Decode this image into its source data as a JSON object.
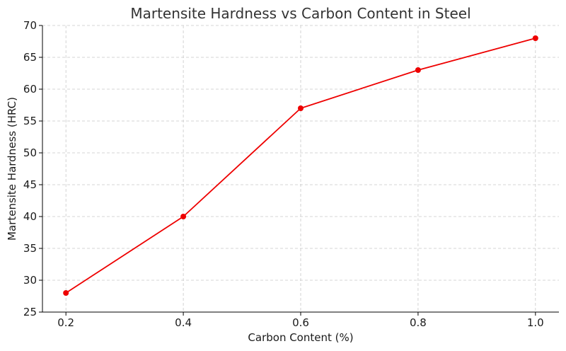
{
  "chart_data": {
    "type": "line",
    "title": "Martensite Hardness vs Carbon Content in Steel",
    "xlabel": "Carbon Content (%)",
    "ylabel": "Martensite Hardness (HRC)",
    "x": [
      0.2,
      0.4,
      0.6,
      0.8,
      1.0
    ],
    "x_tick_labels": [
      "0.2",
      "0.4",
      "0.6",
      "0.8",
      "1.0"
    ],
    "y_ticks": [
      25,
      30,
      35,
      40,
      45,
      50,
      55,
      60,
      65,
      70
    ],
    "y_tick_labels": [
      "25",
      "30",
      "35",
      "40",
      "45",
      "50",
      "55",
      "60",
      "65",
      "70"
    ],
    "xlim": [
      0.16,
      1.04
    ],
    "ylim": [
      25,
      70
    ],
    "grid": true,
    "series": [
      {
        "values": [
          28,
          40,
          57,
          63,
          68
        ],
        "color": "#ee0000",
        "marker": "circle"
      }
    ]
  }
}
